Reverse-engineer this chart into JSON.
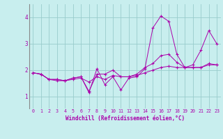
{
  "xlabel": "Windchill (Refroidissement éolien,°C)",
  "bg_color": "#c8eeee",
  "grid_color": "#99cccc",
  "line_color": "#aa00aa",
  "xlim_min": -0.5,
  "xlim_max": 23.5,
  "ylim_min": 0.55,
  "ylim_max": 4.5,
  "xticks": [
    0,
    1,
    2,
    3,
    4,
    5,
    6,
    7,
    8,
    9,
    10,
    11,
    12,
    13,
    14,
    15,
    16,
    17,
    18,
    19,
    20,
    21,
    22,
    23
  ],
  "yticks": [
    1,
    2,
    3,
    4
  ],
  "series": [
    [
      1.9,
      1.85,
      1.65,
      1.65,
      1.6,
      1.7,
      1.75,
      1.15,
      2.05,
      1.45,
      1.75,
      1.25,
      1.7,
      1.75,
      2.05,
      3.6,
      4.05,
      3.85,
      2.6,
      2.1,
      2.2,
      2.75,
      3.5,
      3.0
    ],
    [
      1.9,
      1.85,
      1.65,
      1.65,
      1.6,
      1.7,
      1.75,
      1.2,
      1.85,
      1.85,
      2.0,
      1.75,
      1.75,
      1.85,
      2.1,
      2.25,
      2.55,
      2.6,
      2.3,
      2.1,
      2.1,
      2.1,
      2.25,
      2.2
    ],
    [
      1.9,
      1.85,
      1.65,
      1.6,
      1.6,
      1.65,
      1.7,
      1.55,
      1.75,
      1.65,
      1.8,
      1.75,
      1.75,
      1.8,
      1.9,
      2.0,
      2.1,
      2.15,
      2.1,
      2.1,
      2.1,
      2.1,
      2.2,
      2.2
    ]
  ]
}
